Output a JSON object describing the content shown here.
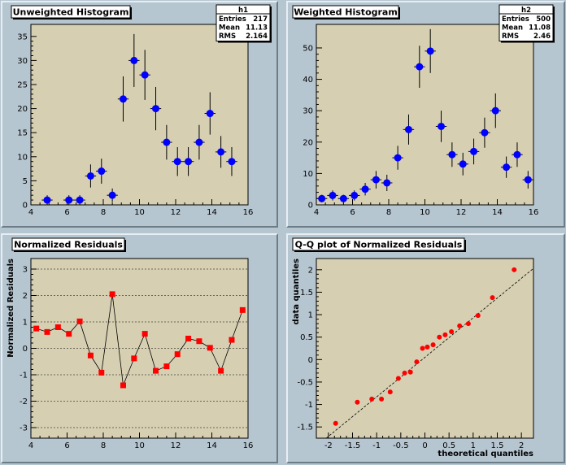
{
  "colors": {
    "frame_bg": "#b6c6d1",
    "plot_bg": "#d6cfb2",
    "hist_marker": "#0000ff",
    "resid_marker": "#ff0000",
    "qq_marker": "#ff0000"
  },
  "chart_data": [
    {
      "id": "p1",
      "type": "scatter",
      "title": "Unweighted Histogram",
      "xlabel": "",
      "ylabel": "",
      "xlim": [
        4,
        16
      ],
      "ylim": [
        0,
        37.5
      ],
      "xticks": [
        4,
        6,
        8,
        10,
        12,
        14,
        16
      ],
      "yticks": [
        0,
        5,
        10,
        15,
        20,
        25,
        30,
        35
      ],
      "grid": false,
      "marker": "circle",
      "color": "#0000ff",
      "x": [
        4.9,
        6.1,
        6.7,
        7.3,
        7.9,
        8.5,
        9.1,
        9.7,
        10.3,
        10.9,
        11.5,
        12.1,
        12.7,
        13.3,
        13.9,
        14.5,
        15.1
      ],
      "y": [
        1,
        1,
        1,
        6,
        7,
        2,
        22,
        30,
        27,
        20,
        13,
        9,
        9,
        13,
        19,
        11,
        9
      ],
      "xerr": 0.3,
      "yerr": [
        1,
        1,
        1,
        2.4,
        2.6,
        1.4,
        4.7,
        5.5,
        5.2,
        4.5,
        3.6,
        3,
        3,
        3.6,
        4.4,
        3.3,
        3
      ],
      "stats": {
        "name": "h1",
        "rows": [
          {
            "label": "Entries",
            "value": "217"
          },
          {
            "label": "Mean",
            "value": "11.13"
          },
          {
            "label": "RMS",
            "value": "2.164"
          }
        ]
      }
    },
    {
      "id": "p2",
      "type": "scatter",
      "title": "Weighted Histogram",
      "xlabel": "",
      "ylabel": "",
      "xlim": [
        4,
        16
      ],
      "ylim": [
        0,
        57.5
      ],
      "xticks": [
        4,
        6,
        8,
        10,
        12,
        14,
        16
      ],
      "yticks": [
        0,
        10,
        20,
        30,
        40,
        50
      ],
      "grid": false,
      "marker": "circle",
      "color": "#0000ff",
      "x": [
        4.3,
        4.9,
        5.5,
        6.1,
        6.7,
        7.3,
        7.9,
        8.5,
        9.1,
        9.7,
        10.3,
        10.9,
        11.5,
        12.1,
        12.7,
        13.3,
        13.9,
        14.5,
        15.1,
        15.7
      ],
      "y": [
        2,
        3,
        2,
        3,
        5,
        8,
        7,
        15,
        24,
        44,
        49,
        25,
        16,
        13,
        17,
        23,
        30,
        12,
        16,
        8
      ],
      "xerr": 0.3,
      "yerr": [
        1.2,
        1.6,
        1.2,
        1.6,
        2,
        2.8,
        2.6,
        3.8,
        4.8,
        6.7,
        7,
        5,
        3.9,
        3.6,
        4.1,
        4.8,
        5.5,
        3.4,
        3.9,
        2.8
      ],
      "stats": {
        "name": "h2",
        "rows": [
          {
            "label": "Entries",
            "value": "500"
          },
          {
            "label": "Mean",
            "value": "11.08"
          },
          {
            "label": "RMS",
            "value": "2.46"
          }
        ]
      }
    },
    {
      "id": "p3",
      "type": "line",
      "title": "Normalized Residuals",
      "xlabel": "",
      "ylabel": "Normalized Residuals",
      "xlim": [
        4,
        16
      ],
      "ylim": [
        -3.4,
        3.4
      ],
      "xticks": [
        4,
        6,
        8,
        10,
        12,
        14,
        16
      ],
      "yticks": [
        -3,
        -2,
        -1,
        0,
        1,
        2,
        3
      ],
      "grid": true,
      "marker": "square",
      "color": "#ff0000",
      "x": [
        4.3,
        4.9,
        5.5,
        6.1,
        6.7,
        7.3,
        7.9,
        8.5,
        9.1,
        9.7,
        10.3,
        10.9,
        11.5,
        12.1,
        12.7,
        13.3,
        13.9,
        14.5,
        15.1,
        15.7
      ],
      "y": [
        0.75,
        0.62,
        0.8,
        0.55,
        1.02,
        -0.27,
        -0.92,
        2.05,
        -1.4,
        -0.38,
        0.55,
        -0.85,
        -0.68,
        -0.22,
        0.37,
        0.27,
        0.02,
        -0.85,
        0.32,
        1.45
      ]
    },
    {
      "id": "p4",
      "type": "scatter",
      "title": "Q-Q plot of Normalized Residuals",
      "xlabel": "theoretical quantiles",
      "ylabel": "data quantiles",
      "xlim": [
        -2.25,
        2.25
      ],
      "ylim": [
        -1.75,
        2.25
      ],
      "xticks": [
        -2,
        -1.5,
        -1,
        -0.5,
        0,
        0.5,
        1,
        1.5,
        2
      ],
      "yticks": [
        -1.5,
        -1,
        -0.5,
        0,
        0.5,
        1,
        1.5,
        2
      ],
      "grid": false,
      "marker": "circle",
      "color": "#ff0000",
      "x": [
        -1.85,
        -1.4,
        -1.1,
        -0.9,
        -0.72,
        -0.55,
        -0.42,
        -0.3,
        -0.17,
        -0.05,
        0.05,
        0.17,
        0.3,
        0.42,
        0.55,
        0.72,
        0.9,
        1.1,
        1.4,
        1.85
      ],
      "y": [
        -1.42,
        -0.95,
        -0.88,
        -0.88,
        -0.72,
        -0.42,
        -0.3,
        -0.28,
        -0.05,
        0.25,
        0.28,
        0.33,
        0.5,
        0.55,
        0.62,
        0.75,
        0.8,
        0.98,
        1.38,
        2.0
      ],
      "reference_line": {
        "slope": 0.88,
        "intercept": 0.05
      }
    }
  ]
}
